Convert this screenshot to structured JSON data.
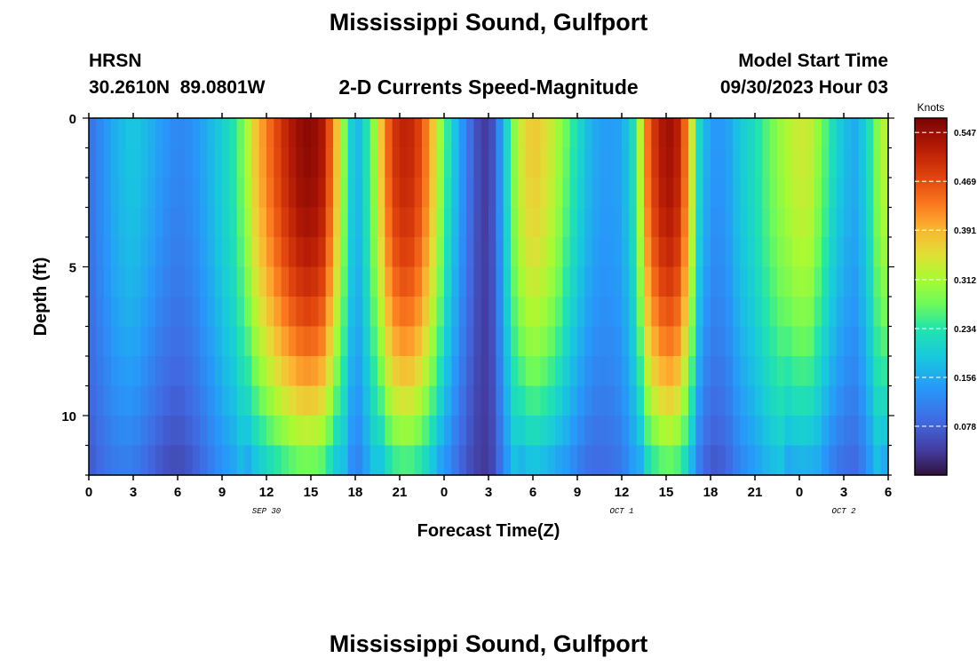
{
  "chart_data": {
    "type": "heatmap",
    "title": "Mississippi Sound, Gulfport",
    "station_code": "HRSN",
    "station_coords": "30.2610N  89.0801W",
    "subtitle": "2-D Currents Speed-Magnitude",
    "model_start_label": "Model Start Time",
    "model_start_value": "09/30/2023 Hour 03",
    "xlabel": "Forecast Time(Z)",
    "ylabel": "Depth (ft)",
    "x_range_hours": [
      0,
      54
    ],
    "y_range_ft": [
      0,
      12
    ],
    "x_ticks": [
      {
        "hour": 0,
        "label": "0"
      },
      {
        "hour": 3,
        "label": "3"
      },
      {
        "hour": 6,
        "label": "6"
      },
      {
        "hour": 9,
        "label": "9"
      },
      {
        "hour": 12,
        "label": "12"
      },
      {
        "hour": 15,
        "label": "15"
      },
      {
        "hour": 18,
        "label": "18"
      },
      {
        "hour": 21,
        "label": "21"
      },
      {
        "hour": 24,
        "label": "0"
      },
      {
        "hour": 27,
        "label": "3"
      },
      {
        "hour": 30,
        "label": "6"
      },
      {
        "hour": 33,
        "label": "9"
      },
      {
        "hour": 36,
        "label": "12"
      },
      {
        "hour": 39,
        "label": "15"
      },
      {
        "hour": 42,
        "label": "18"
      },
      {
        "hour": 45,
        "label": "21"
      },
      {
        "hour": 48,
        "label": "0"
      },
      {
        "hour": 51,
        "label": "3"
      },
      {
        "hour": 54,
        "label": "6"
      }
    ],
    "y_ticks": [
      {
        "depth": 0,
        "label": "0"
      },
      {
        "depth": 5,
        "label": "5"
      },
      {
        "depth": 10,
        "label": "10"
      }
    ],
    "date_labels": [
      {
        "hour": 12,
        "label": "SEP 30"
      },
      {
        "hour": 36,
        "label": "OCT 1"
      },
      {
        "hour": 51,
        "label": "OCT 2"
      }
    ],
    "colorbar": {
      "title": "Knots",
      "min": 0,
      "max": 0.57,
      "ticks": [
        "0.547",
        "0.469",
        "0.391",
        "0.312",
        "0.234",
        "0.156",
        "0.078"
      ]
    },
    "time_step_hours": 0.5,
    "depth_levels_ft": [
      0.5,
      1.5,
      2.5,
      3.5,
      4.5,
      5.5,
      6.5,
      7.5,
      8.5,
      9.5,
      10.5,
      11.5
    ],
    "surface_speed_profile": {
      "hours": [
        0,
        1,
        2,
        3,
        4,
        5,
        6,
        7,
        8,
        9,
        9.8,
        10.5,
        11.2,
        12,
        12.8,
        13.5,
        14.3,
        15,
        15.8,
        16.5,
        17.2,
        18,
        19,
        19.7,
        20.5,
        21.5,
        22.5,
        23.3,
        24,
        24.8,
        25.5,
        26.2,
        27,
        27.6,
        28.3,
        29,
        30,
        31,
        32,
        33,
        34,
        35,
        36,
        36.8,
        37.8,
        38.5,
        39,
        39.5,
        40,
        40.6,
        41.2,
        42,
        43,
        44,
        45,
        46,
        47,
        48,
        48.8,
        49.5,
        50.3,
        51,
        51.8,
        52.5,
        53.2,
        54
      ],
      "speed": [
        0.09,
        0.13,
        0.17,
        0.19,
        0.17,
        0.14,
        0.12,
        0.13,
        0.16,
        0.2,
        0.23,
        0.29,
        0.37,
        0.43,
        0.48,
        0.52,
        0.55,
        0.56,
        0.53,
        0.43,
        0.3,
        0.15,
        0.25,
        0.37,
        0.49,
        0.52,
        0.47,
        0.37,
        0.27,
        0.18,
        0.11,
        0.06,
        0.03,
        0.1,
        0.22,
        0.33,
        0.38,
        0.35,
        0.29,
        0.22,
        0.16,
        0.14,
        0.15,
        0.22,
        0.45,
        0.52,
        0.54,
        0.54,
        0.5,
        0.38,
        0.22,
        0.14,
        0.14,
        0.19,
        0.22,
        0.27,
        0.31,
        0.34,
        0.33,
        0.28,
        0.22,
        0.18,
        0.16,
        0.2,
        0.28,
        0.34
      ]
    }
  }
}
